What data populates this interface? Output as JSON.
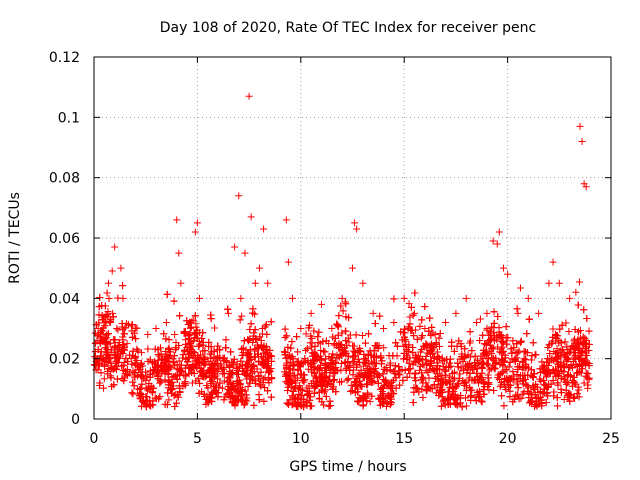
{
  "chart_data": {
    "type": "scatter",
    "title": "Day 108 of 2020, Rate Of TEC Index for receiver penc",
    "xlabel": "GPS time / hours",
    "ylabel": "ROTI / TECUs",
    "xlim": [
      0,
      25
    ],
    "ylim": [
      0,
      0.12
    ],
    "xticks": [
      "0",
      "5",
      "10",
      "15",
      "20",
      "25"
    ],
    "yticks": [
      "0",
      "0.02",
      "0.04",
      "0.06",
      "0.08",
      "0.1",
      "0.12"
    ],
    "grid": true,
    "marker": "plus",
    "color": "#ff0000",
    "data_gap_hours": [
      8.6,
      9.2
    ],
    "series": [
      {
        "description_of_density": "dense band of points roughly 0.005–0.035 across the day",
        "x": [
          0.1,
          0.2,
          0.3,
          0.5,
          0.7,
          0.9,
          1.0,
          1.1,
          1.3,
          1.4,
          1.6,
          1.8,
          2.0,
          2.3,
          2.6,
          3.0,
          3.5,
          3.9,
          4.0,
          4.1,
          4.2,
          4.6,
          4.9,
          5.0,
          5.1,
          5.3,
          5.6,
          6.0,
          6.5,
          6.8,
          7.0,
          7.1,
          7.3,
          7.5,
          7.6,
          7.8,
          8.0,
          8.2,
          8.4,
          9.3,
          9.4,
          9.6,
          10.0,
          10.5,
          11.0,
          11.5,
          12.0,
          12.5,
          12.6,
          12.7,
          13.0,
          13.5,
          14.0,
          14.5,
          15.0,
          15.5,
          16.0,
          16.5,
          17.0,
          17.5,
          18.0,
          18.5,
          19.0,
          19.3,
          19.5,
          19.6,
          19.8,
          20.0,
          20.5,
          21.0,
          21.5,
          22.0,
          22.2,
          22.5,
          23.0,
          23.3,
          23.5,
          23.6,
          23.7,
          23.8
        ],
        "y": [
          0.02,
          0.03,
          0.025,
          0.018,
          0.045,
          0.035,
          0.057,
          0.03,
          0.05,
          0.04,
          0.025,
          0.02,
          0.03,
          0.022,
          0.028,
          0.03,
          0.032,
          0.028,
          0.066,
          0.055,
          0.045,
          0.025,
          0.062,
          0.065,
          0.04,
          0.02,
          0.018,
          0.02,
          0.035,
          0.057,
          0.074,
          0.04,
          0.055,
          0.107,
          0.067,
          0.045,
          0.05,
          0.063,
          0.045,
          0.066,
          0.052,
          0.04,
          0.03,
          0.035,
          0.038,
          0.03,
          0.04,
          0.05,
          0.065,
          0.063,
          0.045,
          0.035,
          0.03,
          0.032,
          0.04,
          0.035,
          0.03,
          0.028,
          0.032,
          0.035,
          0.04,
          0.032,
          0.035,
          0.059,
          0.058,
          0.062,
          0.05,
          0.048,
          0.035,
          0.04,
          0.035,
          0.045,
          0.052,
          0.045,
          0.04,
          0.042,
          0.097,
          0.092,
          0.078,
          0.077
        ]
      }
    ]
  }
}
